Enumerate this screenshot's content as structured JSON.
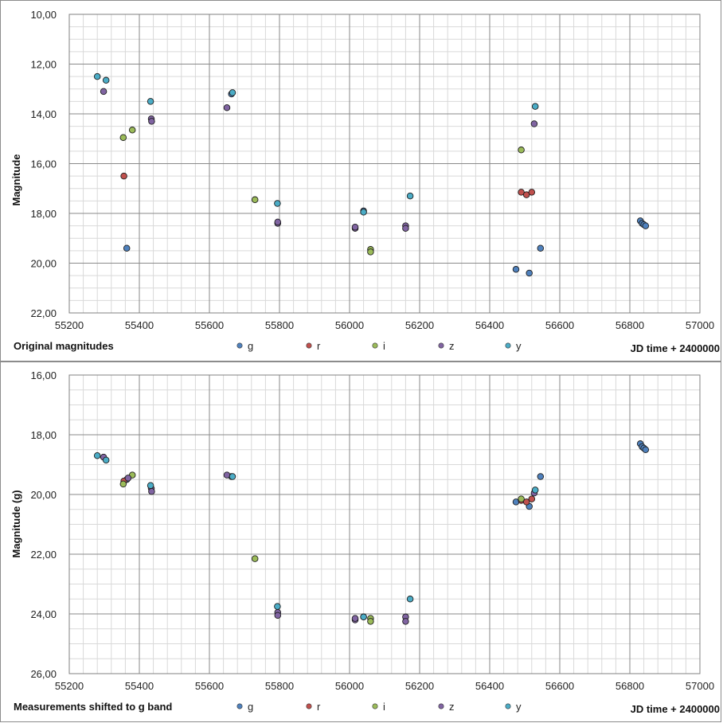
{
  "chart_data": [
    {
      "type": "scatter",
      "title": "",
      "caption": "Original magnitudes",
      "xlabel": "JD time + 2400000",
      "ylabel": "Magnitude",
      "xlim": [
        55200,
        57000
      ],
      "ylim": [
        10,
        22
      ],
      "y_inverted": true,
      "x_ticks": [
        55200,
        55400,
        55600,
        55800,
        56000,
        56200,
        56400,
        56600,
        56800,
        57000
      ],
      "y_ticks": [
        "10,00",
        "12,00",
        "14,00",
        "16,00",
        "18,00",
        "20,00",
        "22,00"
      ],
      "y_tick_values": [
        10,
        12,
        14,
        16,
        18,
        20,
        22
      ],
      "grid": true,
      "legend": "bottom",
      "series": [
        {
          "name": "g",
          "color": "#4f81bd",
          "points": [
            [
              55364,
              19.4
            ],
            [
              55663,
              13.2
            ],
            [
              56040,
              17.9
            ],
            [
              56475,
              20.25
            ],
            [
              56513,
              20.4
            ],
            [
              56545,
              19.4
            ],
            [
              56830,
              18.3
            ],
            [
              56835,
              18.4
            ],
            [
              56840,
              18.45
            ],
            [
              56845,
              18.5
            ]
          ]
        },
        {
          "name": "r",
          "color": "#c0504d",
          "points": [
            [
              55356,
              16.5
            ],
            [
              56490,
              17.15
            ],
            [
              56505,
              17.25
            ],
            [
              56520,
              17.15
            ]
          ]
        },
        {
          "name": "i",
          "color": "#9bbb59",
          "points": [
            [
              55354,
              14.95
            ],
            [
              55380,
              14.65
            ],
            [
              55730,
              17.45
            ],
            [
              56060,
              19.45
            ],
            [
              56060,
              19.55
            ],
            [
              56490,
              15.45
            ]
          ]
        },
        {
          "name": "z",
          "color": "#8064a2",
          "points": [
            [
              55298,
              13.1
            ],
            [
              55434,
              14.2
            ],
            [
              55435,
              14.3
            ],
            [
              55650,
              13.75
            ],
            [
              55795,
              18.4
            ],
            [
              55795,
              18.35
            ],
            [
              56016,
              18.6
            ],
            [
              56016,
              18.55
            ],
            [
              56160,
              18.5
            ],
            [
              56160,
              18.6
            ],
            [
              56527,
              14.4
            ]
          ]
        },
        {
          "name": "y",
          "color": "#4bacc6",
          "points": [
            [
              55280,
              12.5
            ],
            [
              55305,
              12.65
            ],
            [
              55432,
              13.5
            ],
            [
              55666,
              13.15
            ],
            [
              55794,
              17.6
            ],
            [
              56040,
              17.95
            ],
            [
              56173,
              17.3
            ],
            [
              56530,
              13.7
            ]
          ]
        }
      ]
    },
    {
      "type": "scatter",
      "title": "",
      "caption": "Measurements shifted to g band",
      "xlabel": "JD time + 2400000",
      "ylabel": "Magnitude (g)",
      "xlim": [
        55200,
        57000
      ],
      "ylim": [
        16,
        26
      ],
      "y_inverted": true,
      "x_ticks": [
        55200,
        55400,
        55600,
        55800,
        56000,
        56200,
        56400,
        56600,
        56800,
        57000
      ],
      "y_ticks": [
        "16,00",
        "18,00",
        "20,00",
        "22,00",
        "24,00",
        "26,00"
      ],
      "y_tick_values": [
        16,
        18,
        20,
        22,
        24,
        26
      ],
      "grid": true,
      "legend": "bottom",
      "series": [
        {
          "name": "g",
          "color": "#4f81bd",
          "points": [
            [
              55364,
              19.5
            ],
            [
              55663,
              19.4
            ],
            [
              56040,
              24.1
            ],
            [
              56475,
              20.25
            ],
            [
              56513,
              20.4
            ],
            [
              56545,
              19.4
            ],
            [
              56830,
              18.3
            ],
            [
              56835,
              18.4
            ],
            [
              56840,
              18.45
            ],
            [
              56845,
              18.5
            ]
          ]
        },
        {
          "name": "r",
          "color": "#c0504d",
          "points": [
            [
              55356,
              19.55
            ],
            [
              56490,
              20.2
            ],
            [
              56505,
              20.25
            ],
            [
              56520,
              20.15
            ]
          ]
        },
        {
          "name": "i",
          "color": "#9bbb59",
          "points": [
            [
              55354,
              19.65
            ],
            [
              55380,
              19.35
            ],
            [
              55730,
              22.15
            ],
            [
              56060,
              24.15
            ],
            [
              56060,
              24.25
            ],
            [
              56490,
              20.15
            ]
          ]
        },
        {
          "name": "z",
          "color": "#8064a2",
          "points": [
            [
              55298,
              18.75
            ],
            [
              55368,
              19.45
            ],
            [
              55434,
              19.8
            ],
            [
              55435,
              19.9
            ],
            [
              55650,
              19.35
            ],
            [
              55795,
              23.95
            ],
            [
              55795,
              24.05
            ],
            [
              56016,
              24.2
            ],
            [
              56016,
              24.15
            ],
            [
              56160,
              24.1
            ],
            [
              56160,
              24.25
            ],
            [
              56527,
              19.95
            ]
          ]
        },
        {
          "name": "y",
          "color": "#4bacc6",
          "points": [
            [
              55280,
              18.7
            ],
            [
              55305,
              18.85
            ],
            [
              55432,
              19.7
            ],
            [
              55666,
              19.4
            ],
            [
              55794,
              23.75
            ],
            [
              56040,
              24.1
            ],
            [
              56173,
              23.5
            ],
            [
              56530,
              19.85
            ]
          ]
        }
      ]
    }
  ]
}
